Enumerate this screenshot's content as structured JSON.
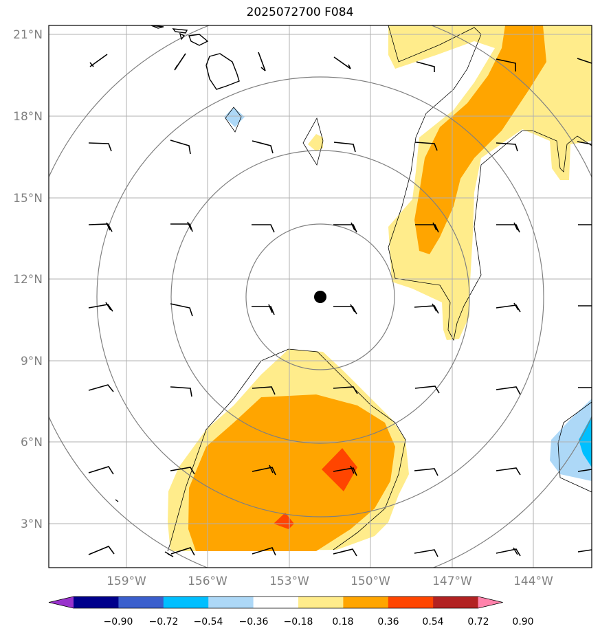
{
  "title": "2025072700 F084",
  "lat_labels": [
    "21°N",
    "18°N",
    "15°N",
    "12°N",
    "9°N",
    "6°N",
    "3°N"
  ],
  "lon_labels": [
    "159°W",
    "156°W",
    "153°W",
    "150°W",
    "147°W",
    "144°W"
  ],
  "colorbar": {
    "ticks": [
      "−0.90",
      "−0.72",
      "−0.54",
      "−0.36",
      "−0.18",
      "0.18",
      "0.36",
      "0.54",
      "0.72",
      "0.90"
    ],
    "colors": [
      "#9932cc",
      "#00008b",
      "#3a5fcd",
      "#00bfff",
      "#add8f7",
      "#ffffff",
      "#ffec8b",
      "#ffa500",
      "#ff4500",
      "#b22222",
      "#ff82ab"
    ]
  },
  "map": {
    "center_marker": "storm-center",
    "rings": 4,
    "grid": true
  }
}
